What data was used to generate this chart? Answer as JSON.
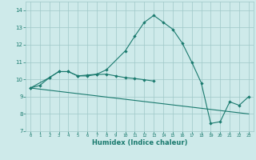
{
  "xlabel": "Humidex (Indice chaleur)",
  "xlim": [
    -0.5,
    23.5
  ],
  "ylim": [
    7,
    14.5
  ],
  "yticks": [
    7,
    8,
    9,
    10,
    11,
    12,
    13,
    14
  ],
  "xticks": [
    0,
    1,
    2,
    3,
    4,
    5,
    6,
    7,
    8,
    9,
    10,
    11,
    12,
    13,
    14,
    15,
    16,
    17,
    18,
    19,
    20,
    21,
    22,
    23
  ],
  "bg_color": "#ceeaea",
  "grid_color": "#9fc8c8",
  "line_color": "#1a7a6e",
  "line1_x": [
    0,
    1,
    2,
    3,
    4,
    5,
    6,
    7,
    8,
    10,
    11,
    12,
    13,
    14,
    15,
    16,
    17,
    18,
    19,
    20,
    21,
    22,
    23
  ],
  "line1_y": [
    9.5,
    9.65,
    10.1,
    10.45,
    10.45,
    10.2,
    10.25,
    10.3,
    10.55,
    11.65,
    12.5,
    13.3,
    13.7,
    13.3,
    12.9,
    12.1,
    11.0,
    9.8,
    7.45,
    7.55,
    8.7,
    8.5,
    9.0
  ],
  "line2_x": [
    0,
    2,
    3,
    4,
    5,
    6,
    7,
    8,
    9,
    10,
    11,
    12,
    13
  ],
  "line2_y": [
    9.5,
    10.1,
    10.45,
    10.45,
    10.2,
    10.2,
    10.28,
    10.3,
    10.2,
    10.1,
    10.05,
    9.98,
    9.9
  ],
  "line3_x": [
    0,
    23
  ],
  "line3_y": [
    9.5,
    8.0
  ]
}
